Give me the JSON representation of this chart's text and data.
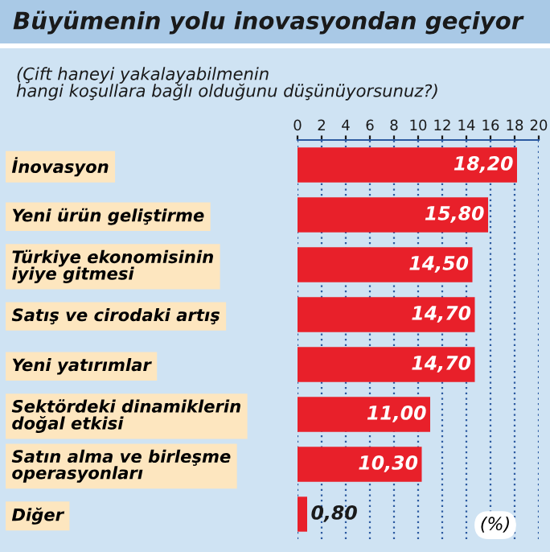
{
  "chart_data": {
    "type": "bar",
    "orientation": "horizontal",
    "title": "Büyümenin yolu inovasyondan geçiyor",
    "subtitle": "(Çift haneyi yakalayabilmenin\nhangi koşullara bağlı olduğunu düşünüyorsunuz?)",
    "categories": [
      "İnovasyon",
      "Yeni ürün geliştirme",
      "Türkiye ekonomisinin\niyiye gitmesi",
      "Satış ve cirodaki artış",
      "Yeni yatırımlar",
      "Sektördeki dinamiklerin\ndoğal etkisi",
      "Satın alma ve birleşme\noperasyonları",
      "Diğer"
    ],
    "values": [
      18.2,
      15.8,
      14.5,
      14.7,
      14.7,
      11.0,
      10.3,
      0.8
    ],
    "value_labels": [
      "18,20",
      "15,80",
      "14,50",
      "14,70",
      "14,70",
      "11,00",
      "10,30",
      "0,80"
    ],
    "color": "#e8202a",
    "xlim": [
      0,
      20
    ],
    "xticks": [
      0,
      2,
      4,
      6,
      8,
      10,
      12,
      14,
      16,
      18,
      20
    ],
    "grid": "x",
    "annotations": [
      "(%)"
    ]
  }
}
